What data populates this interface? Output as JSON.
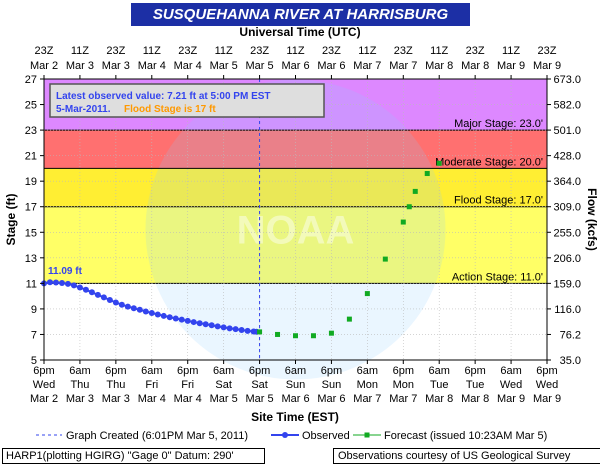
{
  "title": "SUSQUEHANNA RIVER AT HARRISBURG",
  "top_axis_title": "Universal Time (UTC)",
  "bottom_axis_title": "Site Time (EST)",
  "left_axis_title": "Stage (ft)",
  "right_axis_title": "Flow (kcfs)",
  "top_ticks": [
    {
      "l1": "23Z",
      "l2": "Mar 2"
    },
    {
      "l1": "11Z",
      "l2": "Mar 3"
    },
    {
      "l1": "23Z",
      "l2": "Mar 3"
    },
    {
      "l1": "11Z",
      "l2": "Mar 4"
    },
    {
      "l1": "23Z",
      "l2": "Mar 4"
    },
    {
      "l1": "11Z",
      "l2": "Mar 5"
    },
    {
      "l1": "23Z",
      "l2": "Mar 5"
    },
    {
      "l1": "11Z",
      "l2": "Mar 6"
    },
    {
      "l1": "23Z",
      "l2": "Mar 6"
    },
    {
      "l1": "11Z",
      "l2": "Mar 7"
    },
    {
      "l1": "23Z",
      "l2": "Mar 7"
    },
    {
      "l1": "11Z",
      "l2": "Mar 8"
    },
    {
      "l1": "23Z",
      "l2": "Mar 8"
    },
    {
      "l1": "11Z",
      "l2": "Mar 9"
    },
    {
      "l1": "23Z",
      "l2": "Mar 9"
    }
  ],
  "bottom_ticks": [
    {
      "l1": "6pm",
      "l2": "Wed",
      "l3": "Mar 2"
    },
    {
      "l1": "6am",
      "l2": "Thu",
      "l3": "Mar 3"
    },
    {
      "l1": "6pm",
      "l2": "Thu",
      "l3": "Mar 3"
    },
    {
      "l1": "6am",
      "l2": "Fri",
      "l3": "Mar 4"
    },
    {
      "l1": "6pm",
      "l2": "Fri",
      "l3": "Mar 4"
    },
    {
      "l1": "6am",
      "l2": "Sat",
      "l3": "Mar 5"
    },
    {
      "l1": "6pm",
      "l2": "Sat",
      "l3": "Mar 5"
    },
    {
      "l1": "6am",
      "l2": "Sun",
      "l3": "Mar 6"
    },
    {
      "l1": "6pm",
      "l2": "Sun",
      "l3": "Mar 6"
    },
    {
      "l1": "6am",
      "l2": "Mon",
      "l3": "Mar 7"
    },
    {
      "l1": "6pm",
      "l2": "Mon",
      "l3": "Mar 7"
    },
    {
      "l1": "6am",
      "l2": "Tue",
      "l3": "Mar 8"
    },
    {
      "l1": "6pm",
      "l2": "Tue",
      "l3": "Mar 8"
    },
    {
      "l1": "6am",
      "l2": "Wed",
      "l3": "Mar 9"
    },
    {
      "l1": "6pm",
      "l2": "Wed",
      "l3": "Mar 9"
    }
  ],
  "stage_ticks": [
    "5",
    "7",
    "9",
    "11",
    "13",
    "15",
    "17",
    "19",
    "21",
    "23",
    "25",
    "27"
  ],
  "flow_ticks": [
    "35.0",
    "76.2",
    "116.0",
    "159.0",
    "206.0",
    "255.0",
    "309.0",
    "364.0",
    "428.0",
    "501.0",
    "582.0",
    "673.0"
  ],
  "info_box": {
    "line1": "Latest observed value: 7.21 ft at 5:00 PM EST",
    "line2_date": "5-Mar-2011.",
    "line2_flood": "Flood Stage is 17 ft"
  },
  "peak_label": "11.09 ft",
  "legend": {
    "created": "Graph Created (6:01PM Mar 5, 2011)",
    "observed": "Observed",
    "forecast": "Forecast (issued 10:23AM Mar 5)"
  },
  "footer_left": "HARP1(plotting HGIRG) \"Gage 0\" Datum: 290'",
  "footer_right": "Observations courtesy of US Geological Survey",
  "watermark": "NOAA",
  "colors": {
    "major": "#dd88ff",
    "moderate": "#ff7070",
    "flood": "#ffee33",
    "action": "#ffff66",
    "observed": "#3344ee",
    "forecast": "#11aa22",
    "info_date": "#3344ee",
    "info_flood": "#ff9900"
  },
  "chart_data": {
    "type": "line",
    "x_unit": "hours from 6pm Wed Mar 2 (EST)",
    "xlim": [
      0,
      168
    ],
    "ylim": [
      5,
      27
    ],
    "flood_categories": [
      {
        "name": "Major Stage: 23.0'",
        "from": 23,
        "to": 27,
        "color": "#dd88ff"
      },
      {
        "name": "Moderate Stage: 20.0'",
        "from": 20,
        "to": 23,
        "color": "#ff7070"
      },
      {
        "name": "Flood Stage: 17.0'",
        "from": 17,
        "to": 20,
        "color": "#ffee33"
      },
      {
        "name": "Action Stage: 11.0'",
        "from": 11,
        "to": 17,
        "color": "#ffff66"
      }
    ],
    "observed": {
      "name": "Observed",
      "x": [
        0,
        2,
        4,
        6,
        8,
        10,
        12,
        14,
        16,
        18,
        20,
        22,
        24,
        26,
        28,
        30,
        32,
        34,
        36,
        38,
        40,
        42,
        44,
        46,
        48,
        50,
        52,
        54,
        56,
        58,
        60,
        62,
        64,
        66,
        68,
        70,
        71
      ],
      "y": [
        11.0,
        11.09,
        11.07,
        11.03,
        10.96,
        10.84,
        10.68,
        10.5,
        10.3,
        10.1,
        9.9,
        9.7,
        9.5,
        9.33,
        9.18,
        9.05,
        8.93,
        8.8,
        8.68,
        8.56,
        8.45,
        8.35,
        8.25,
        8.16,
        8.06,
        7.97,
        7.88,
        7.8,
        7.72,
        7.63,
        7.55,
        7.48,
        7.42,
        7.35,
        7.28,
        7.23,
        7.21
      ]
    },
    "forecast": {
      "name": "Forecast (issued 10:23AM Mar 5)",
      "x": [
        72,
        78,
        84,
        90,
        96,
        102,
        108,
        114,
        120,
        122,
        124,
        128,
        132
      ],
      "y": [
        7.2,
        7.0,
        6.9,
        6.9,
        7.1,
        8.2,
        10.2,
        12.9,
        15.8,
        17.0,
        18.2,
        19.6,
        20.4
      ]
    },
    "graph_created_x": 72
  }
}
